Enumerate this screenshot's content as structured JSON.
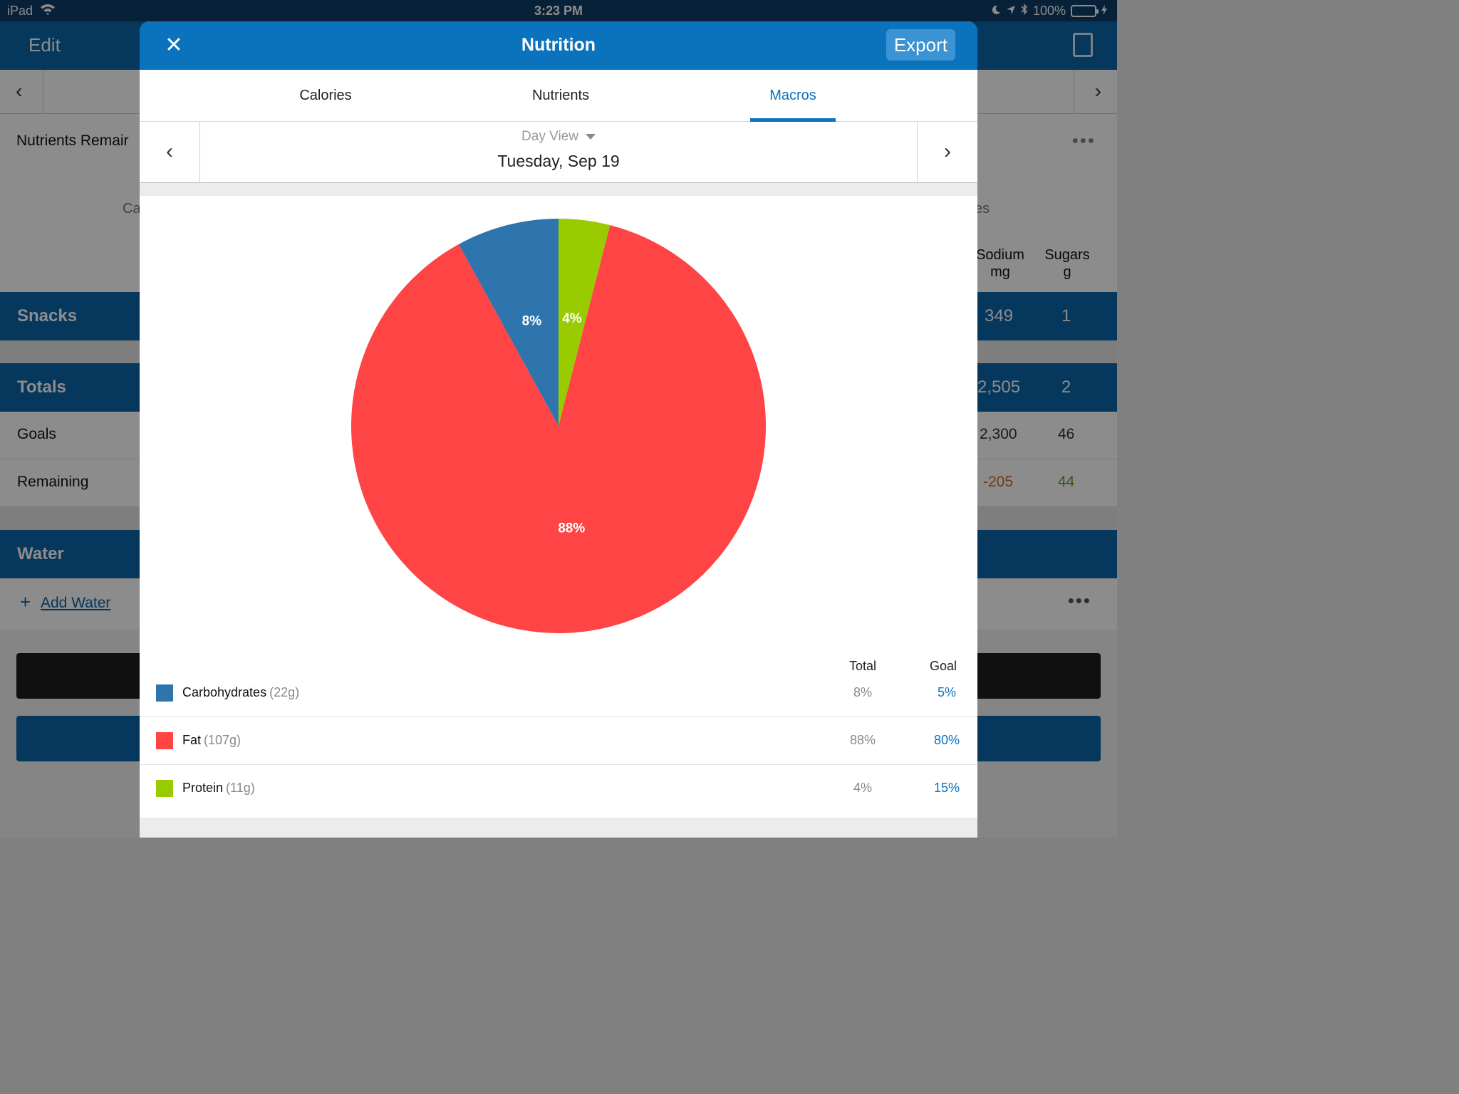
{
  "status_bar": {
    "device": "iPad",
    "time": "3:23 PM",
    "battery": "100%"
  },
  "background": {
    "edit_label": "Edit",
    "summary_title": "Nutrients Remair",
    "partial_left": "Ca",
    "partial_right": "es",
    "col_sodium": "Sodium\nmg",
    "col_sugars": "Sugars\ng",
    "snacks_label": "Snacks",
    "snacks_sodium": "349",
    "snacks_sugars": "1",
    "totals_label": "Totals",
    "totals_sodium": "2,505",
    "totals_sugars": "2",
    "goals_label": "Goals",
    "goals_sodium": "2,300",
    "goals_sugars": "46",
    "remaining_label": "Remaining",
    "remaining_sodium": "-205",
    "remaining_sugars": "44",
    "water_label": "Water",
    "add_water": "Add Water",
    "colors": {
      "negative": "#d2691e",
      "positive": "#5a9e1a"
    }
  },
  "modal": {
    "title": "Nutrition",
    "export_label": "Export",
    "tabs": [
      {
        "label": "Calories",
        "active": false
      },
      {
        "label": "Nutrients",
        "active": false
      },
      {
        "label": "Macros",
        "active": true
      }
    ],
    "view_label": "Day View",
    "date": "Tuesday, Sep 19",
    "legend_headers": {
      "total": "Total",
      "goal": "Goal"
    },
    "macros": [
      {
        "name": "Carbohydrates",
        "grams": "(22g)",
        "total": "8%",
        "goal": "5%",
        "color": "#2e75ad"
      },
      {
        "name": "Fat",
        "grams": "(107g)",
        "total": "88%",
        "goal": "80%",
        "color": "#fe4444"
      },
      {
        "name": "Protein",
        "grams": "(11g)",
        "total": "4%",
        "goal": "15%",
        "color": "#99cc00"
      }
    ]
  },
  "chart_data": {
    "type": "pie",
    "slices": [
      {
        "name": "Protein",
        "value": 4,
        "label": "4%",
        "color": "#99cc00"
      },
      {
        "name": "Fat",
        "value": 88,
        "label": "88%",
        "color": "#fe4444"
      },
      {
        "name": "Carbohydrates",
        "value": 8,
        "label": "8%",
        "color": "#2e75ad"
      }
    ]
  }
}
